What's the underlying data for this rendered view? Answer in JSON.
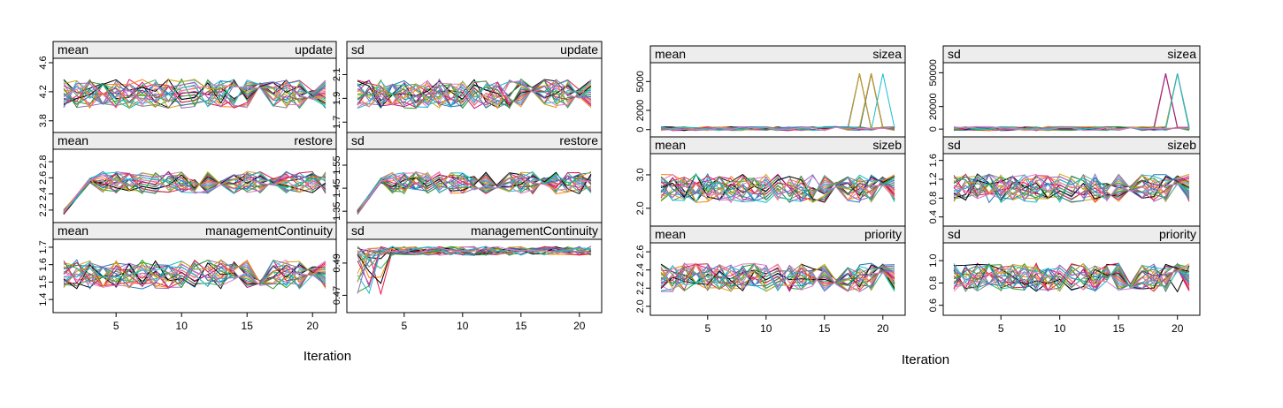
{
  "figures": [
    {
      "xlabel": "Iteration",
      "x_ticks": [
        5,
        10,
        15,
        20
      ],
      "panels": [
        {
          "stat": "mean",
          "variable": "update",
          "yticks": [
            "3.8",
            "4.2",
            "4.6"
          ]
        },
        {
          "stat": "sd",
          "variable": "update",
          "yticks": [
            "1.7",
            "1.9",
            "2.1"
          ]
        },
        {
          "stat": "mean",
          "variable": "restore",
          "yticks": [
            "2.2",
            "2.4",
            "2.6",
            "2.8"
          ]
        },
        {
          "stat": "sd",
          "variable": "restore",
          "yticks": [
            "1.35",
            "1.45",
            "1.55"
          ]
        },
        {
          "stat": "mean",
          "variable": "managementContinuity",
          "yticks": [
            "1.4",
            "1.5",
            "1.6",
            "1.7"
          ]
        },
        {
          "stat": "sd",
          "variable": "managementContinuity",
          "yticks": [
            "0.47",
            "0.49"
          ]
        }
      ]
    },
    {
      "xlabel": "Iteration",
      "x_ticks": [
        5,
        10,
        15,
        20
      ],
      "panels": [
        {
          "stat": "mean",
          "variable": "sizea",
          "yticks": [
            "0",
            "2000",
            "5000"
          ]
        },
        {
          "stat": "sd",
          "variable": "sizea",
          "yticks": [
            "0",
            "20000",
            "50000"
          ]
        },
        {
          "stat": "mean",
          "variable": "sizeb",
          "yticks": [
            "2.0",
            "3.0"
          ]
        },
        {
          "stat": "sd",
          "variable": "sizeb",
          "yticks": [
            "0.4",
            "0.8",
            "1.2",
            "1.6"
          ]
        },
        {
          "stat": "mean",
          "variable": "priority",
          "yticks": [
            "2.0",
            "2.2",
            "2.4",
            "2.6"
          ]
        },
        {
          "stat": "sd",
          "variable": "priority",
          "yticks": [
            "0.6",
            "0.8",
            "1.0"
          ]
        }
      ]
    }
  ],
  "chart_data": [
    {
      "type": "line",
      "panel": "mean update",
      "x": [
        1,
        21
      ],
      "ylim": [
        3.7,
        4.6
      ],
      "series_count": 20,
      "series_colors": [
        "#000000",
        "#e6194b",
        "#1f77b4",
        "#2ca02c",
        "#d4a017",
        "#9467bd",
        "#17becf",
        "#e377c2",
        "#7f7f7f",
        "#ff7f0e",
        "#c71585",
        "#3cb371"
      ]
    },
    {
      "type": "line",
      "panel": "sd update",
      "x": [
        1,
        21
      ],
      "ylim": [
        1.65,
        2.2
      ],
      "series_count": 20
    },
    {
      "type": "line",
      "panel": "mean restore",
      "x": [
        1,
        21
      ],
      "ylim": [
        2.1,
        2.9
      ],
      "series_count": 20
    },
    {
      "type": "line",
      "panel": "sd restore",
      "x": [
        1,
        21
      ],
      "ylim": [
        1.32,
        1.6
      ],
      "series_count": 20
    },
    {
      "type": "line",
      "panel": "mean managementContinuity",
      "x": [
        1,
        21
      ],
      "ylim": [
        1.35,
        1.72
      ],
      "series_count": 20
    },
    {
      "type": "line",
      "panel": "sd managementContinuity",
      "x": [
        1,
        21
      ],
      "ylim": [
        0.462,
        0.502
      ],
      "series_count": 20
    },
    {
      "type": "line",
      "panel": "mean sizea",
      "x": [
        1,
        21
      ],
      "ylim": [
        -300,
        6500
      ],
      "series_count": 20
    },
    {
      "type": "line",
      "panel": "sd sizea",
      "x": [
        1,
        21
      ],
      "ylim": [
        -3000,
        55000
      ],
      "series_count": 20
    },
    {
      "type": "line",
      "panel": "mean sizeb",
      "x": [
        1,
        21
      ],
      "ylim": [
        1.6,
        3.5
      ],
      "series_count": 20
    },
    {
      "type": "line",
      "panel": "sd sizeb",
      "x": [
        1,
        21
      ],
      "ylim": [
        0.3,
        1.65
      ],
      "series_count": 20
    },
    {
      "type": "line",
      "panel": "mean priority",
      "x": [
        1,
        21
      ],
      "ylim": [
        1.95,
        2.65
      ],
      "series_count": 20
    },
    {
      "type": "line",
      "panel": "sd priority",
      "x": [
        1,
        21
      ],
      "ylim": [
        0.55,
        1.12
      ],
      "series_count": 20
    }
  ]
}
